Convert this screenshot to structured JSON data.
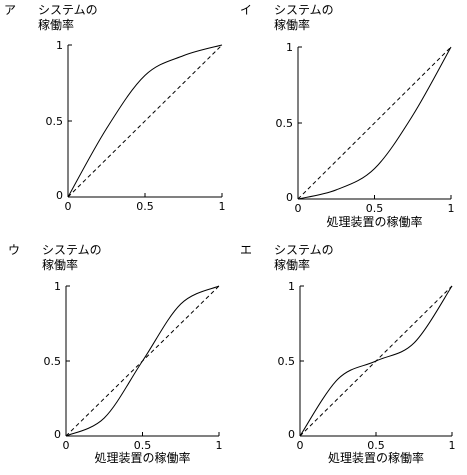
{
  "chart_data": [
    {
      "type": "line",
      "panel_label": "ア",
      "ylabel": [
        "システムの",
        "稼働率"
      ],
      "xlabel": "",
      "xlim": [
        0,
        1
      ],
      "ylim": [
        0,
        1
      ],
      "xticks": [
        "0",
        "0.5",
        "1"
      ],
      "yticks": [
        "0",
        "0.5",
        "1"
      ],
      "series": [
        {
          "style": "solid",
          "x": [
            0,
            0.25,
            0.5,
            0.75,
            1
          ],
          "y": [
            0,
            0.45,
            0.8,
            0.93,
            1
          ]
        },
        {
          "style": "dashed",
          "x": [
            0,
            1
          ],
          "y": [
            0,
            1
          ]
        }
      ]
    },
    {
      "type": "line",
      "panel_label": "イ",
      "ylabel": [
        "システムの",
        "稼働率"
      ],
      "xlabel": "処理装置の稼働率",
      "xlim": [
        0,
        1
      ],
      "ylim": [
        0,
        1
      ],
      "xticks": [
        "0",
        "0.5",
        "1"
      ],
      "yticks": [
        "0",
        "0.5",
        "1"
      ],
      "series": [
        {
          "style": "solid",
          "x": [
            0,
            0.25,
            0.5,
            0.75,
            1
          ],
          "y": [
            0,
            0.06,
            0.2,
            0.55,
            1
          ]
        },
        {
          "style": "dashed",
          "x": [
            0,
            1
          ],
          "y": [
            0,
            1
          ]
        }
      ]
    },
    {
      "type": "line",
      "panel_label": "ウ",
      "ylabel": [
        "システムの",
        "稼働率"
      ],
      "xlabel": "処理装置の稼働率",
      "xlim": [
        0,
        1
      ],
      "ylim": [
        0,
        1
      ],
      "xticks": [
        "0",
        "0.5",
        "1"
      ],
      "yticks": [
        "0",
        "0.5",
        "1"
      ],
      "series": [
        {
          "style": "solid",
          "x": [
            0,
            0.25,
            0.5,
            0.75,
            1
          ],
          "y": [
            0,
            0.12,
            0.5,
            0.88,
            1
          ]
        },
        {
          "style": "dashed",
          "x": [
            0,
            1
          ],
          "y": [
            0,
            1
          ]
        }
      ]
    },
    {
      "type": "line",
      "panel_label": "エ",
      "ylabel": [
        "システムの",
        "稼働率"
      ],
      "xlabel": "処理装置の稼働率",
      "xlim": [
        0,
        1
      ],
      "ylim": [
        0,
        1
      ],
      "xticks": [
        "0",
        "0.5",
        "1"
      ],
      "yticks": [
        "0",
        "0.5",
        "1"
      ],
      "series": [
        {
          "style": "solid",
          "x": [
            0,
            0.25,
            0.5,
            0.75,
            1
          ],
          "y": [
            0,
            0.38,
            0.5,
            0.62,
            1
          ]
        },
        {
          "style": "dashed",
          "x": [
            0,
            1
          ],
          "y": [
            0,
            1
          ]
        }
      ]
    }
  ]
}
